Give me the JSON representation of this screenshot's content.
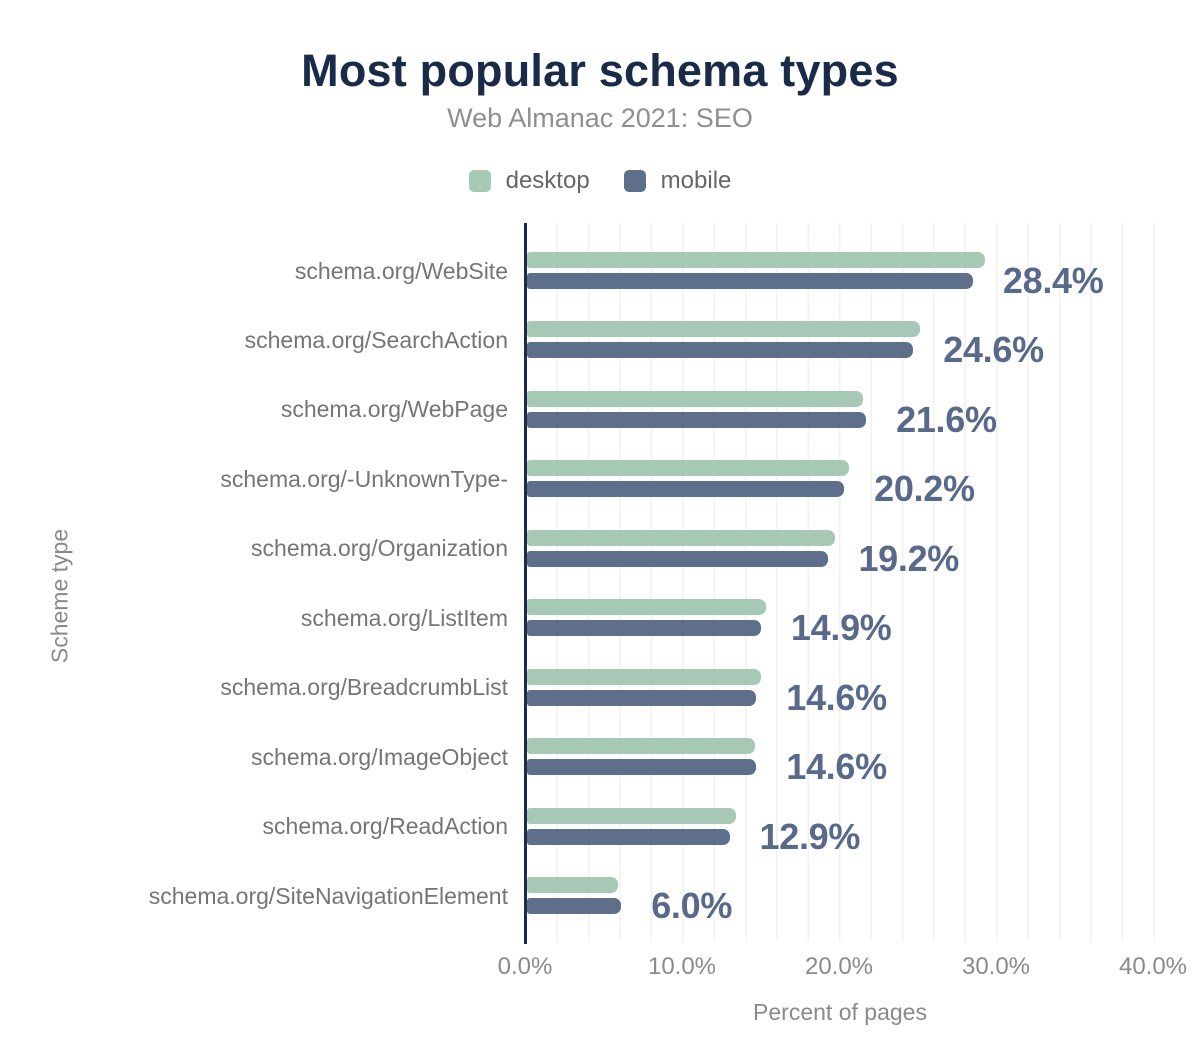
{
  "header": {
    "title": "Most popular schema types",
    "subtitle": "Web Almanac 2021: SEO"
  },
  "legend": {
    "items": [
      {
        "label": "desktop",
        "color": "#a6c9b6"
      },
      {
        "label": "mobile",
        "color": "#5e6f8c"
      }
    ]
  },
  "axes": {
    "x_title": "Percent of pages",
    "y_title": "Scheme type"
  },
  "chart_data": {
    "type": "bar",
    "orientation": "horizontal",
    "title": "Most popular schema types",
    "subtitle": "Web Almanac 2021: SEO",
    "xlabel": "Percent of pages",
    "ylabel": "Scheme type",
    "xlim": [
      0,
      40
    ],
    "x_ticks": [
      "0.0%",
      "10.0%",
      "20.0%",
      "30.0%",
      "40.0%"
    ],
    "grid": "vertical, minor lines every 2%",
    "legend_position": "top",
    "categories": [
      "schema.org/WebSite",
      "schema.org/SearchAction",
      "schema.org/WebPage",
      "schema.org/-UnknownType-",
      "schema.org/Organization",
      "schema.org/ListItem",
      "schema.org/BreadcrumbList",
      "schema.org/ImageObject",
      "schema.org/ReadAction",
      "schema.org/SiteNavigationElement"
    ],
    "series": [
      {
        "name": "desktop",
        "color": "#a6c9b6",
        "values": [
          29.2,
          25.0,
          21.4,
          20.5,
          19.6,
          15.2,
          14.9,
          14.5,
          13.3,
          5.8
        ]
      },
      {
        "name": "mobile",
        "color": "#5e6f8c",
        "values": [
          28.4,
          24.6,
          21.6,
          20.2,
          19.2,
          14.9,
          14.6,
          14.6,
          12.9,
          6.0
        ]
      }
    ],
    "data_labels": [
      "28.4%",
      "24.6%",
      "21.6%",
      "20.2%",
      "19.2%",
      "14.9%",
      "14.6%",
      "14.6%",
      "12.9%",
      "6.0%"
    ],
    "data_label_series": "mobile"
  },
  "style": {
    "title_color": "#1a2b49",
    "value_label_color": "#58698a",
    "axis_line_color": "#1d2b4a",
    "gridline_color": "#f1f1f1"
  }
}
